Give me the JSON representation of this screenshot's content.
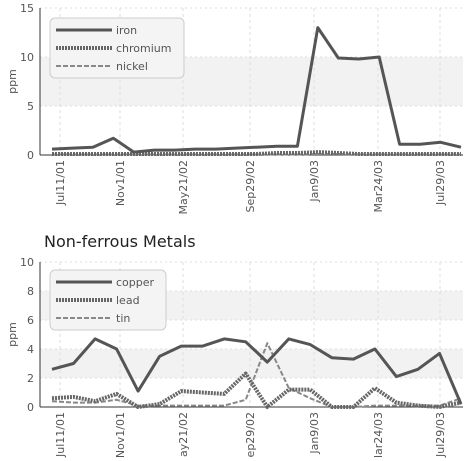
{
  "chart_data": [
    {
      "type": "line",
      "title": "",
      "xlabel": "",
      "ylabel": "ppm",
      "ylim": [
        0,
        15
      ],
      "yticks": [
        "0",
        "5",
        "10",
        "15"
      ],
      "x_tick_labels": [
        "Jul11/01",
        "Nov1/01",
        "May21/02",
        "Sep29/02",
        "Jan9/03",
        "Mar24/03",
        "Jul29/03"
      ],
      "legend_position": "top-left",
      "grid": true,
      "series": [
        {
          "name": "iron",
          "color": "#555555",
          "values": [
            0.6,
            0.7,
            0.8,
            1.7,
            0.3,
            0.5,
            0.5,
            0.6,
            0.6,
            0.7,
            0.8,
            0.9,
            0.9,
            13.0,
            9.9,
            9.8,
            10.0,
            1.1,
            1.1,
            1.3,
            0.8
          ]
        },
        {
          "name": "chromium",
          "color": "#666666",
          "values": [
            0.1,
            0.1,
            0.1,
            0.1,
            0.1,
            0.1,
            0.1,
            0.1,
            0.1,
            0.1,
            0.1,
            0.2,
            0.2,
            0.3,
            0.2,
            0.1,
            0.1,
            0.1,
            0.1,
            0.1,
            0.1
          ]
        },
        {
          "name": "nickel",
          "color": "#888888",
          "values": [
            0.05,
            0.05,
            0.05,
            0.05,
            0.05,
            0.05,
            0.05,
            0.05,
            0.05,
            0.05,
            0.05,
            0.05,
            0.05,
            0.1,
            0.1,
            0.05,
            0.05,
            0.05,
            0.05,
            0.05,
            0.05
          ]
        }
      ]
    },
    {
      "type": "line",
      "title": "Non-ferrous Metals",
      "xlabel": "",
      "ylabel": "ppm",
      "ylim": [
        0,
        10
      ],
      "yticks": [
        "0",
        "2",
        "4",
        "6",
        "8",
        "10"
      ],
      "x_tick_labels": [
        "Jul11/01",
        "Nov1/01",
        "ay21/02",
        "ep29/02",
        "Jan9/03",
        "lar24/03",
        "Jul29/03"
      ],
      "legend_position": "top-left",
      "grid": true,
      "series": [
        {
          "name": "copper",
          "color": "#555555",
          "values": [
            2.6,
            3.0,
            4.7,
            4.0,
            1.1,
            3.5,
            4.2,
            4.2,
            4.7,
            4.5,
            3.1,
            4.7,
            4.3,
            3.4,
            3.3,
            4.0,
            2.1,
            2.6,
            3.7,
            0.2
          ]
        },
        {
          "name": "lead",
          "color": "#666666",
          "values": [
            0.6,
            0.7,
            0.4,
            0.9,
            0.0,
            0.2,
            1.1,
            1.0,
            0.9,
            2.3,
            0.0,
            1.2,
            1.2,
            0.0,
            0.0,
            1.3,
            0.3,
            0.1,
            0.0,
            0.3
          ]
        },
        {
          "name": "tin",
          "color": "#888888",
          "values": [
            0.4,
            0.3,
            0.3,
            0.5,
            0.1,
            0.1,
            0.1,
            0.1,
            0.1,
            0.5,
            4.4,
            1.3,
            0.6,
            0.0,
            0.0,
            0.1,
            0.1,
            0.1,
            0.1,
            0.6
          ]
        }
      ]
    }
  ]
}
